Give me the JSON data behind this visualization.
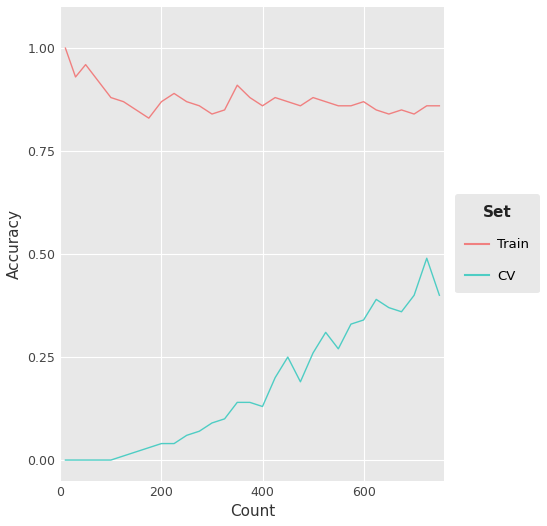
{
  "xlabel": "Count",
  "ylabel": "Accuracy",
  "plot_bg_color": "#E8E8E8",
  "fig_bg_color": "#FFFFFF",
  "grid_color": "#FFFFFF",
  "train_color": "#F08080",
  "cv_color": "#4ECDC4",
  "legend_title": "Set",
  "legend_bg": "#E8E8E8",
  "train_x": [
    10,
    30,
    50,
    75,
    100,
    125,
    150,
    175,
    200,
    225,
    250,
    275,
    300,
    325,
    350,
    375,
    400,
    425,
    450,
    475,
    500,
    525,
    550,
    575,
    600,
    625,
    650,
    675,
    700,
    725,
    750
  ],
  "train_y": [
    1.0,
    0.93,
    0.96,
    0.92,
    0.88,
    0.87,
    0.85,
    0.83,
    0.87,
    0.89,
    0.87,
    0.86,
    0.84,
    0.85,
    0.91,
    0.88,
    0.86,
    0.88,
    0.87,
    0.86,
    0.88,
    0.87,
    0.86,
    0.86,
    0.87,
    0.85,
    0.84,
    0.85,
    0.84,
    0.86,
    0.86
  ],
  "cv_x": [
    10,
    30,
    50,
    75,
    100,
    125,
    150,
    175,
    200,
    225,
    250,
    275,
    300,
    325,
    350,
    375,
    400,
    425,
    450,
    475,
    500,
    525,
    550,
    575,
    600,
    625,
    650,
    675,
    700,
    725,
    750
  ],
  "cv_y": [
    0.0,
    0.0,
    0.0,
    0.0,
    0.0,
    0.01,
    0.02,
    0.03,
    0.04,
    0.04,
    0.06,
    0.07,
    0.09,
    0.1,
    0.14,
    0.14,
    0.13,
    0.2,
    0.25,
    0.19,
    0.26,
    0.31,
    0.27,
    0.33,
    0.34,
    0.39,
    0.37,
    0.36,
    0.4,
    0.49,
    0.4
  ],
  "xlim": [
    0,
    760
  ],
  "ylim": [
    -0.05,
    1.1
  ],
  "xticks": [
    0,
    200,
    400,
    600
  ],
  "yticks": [
    0.0,
    0.25,
    0.5,
    0.75,
    1.0
  ]
}
